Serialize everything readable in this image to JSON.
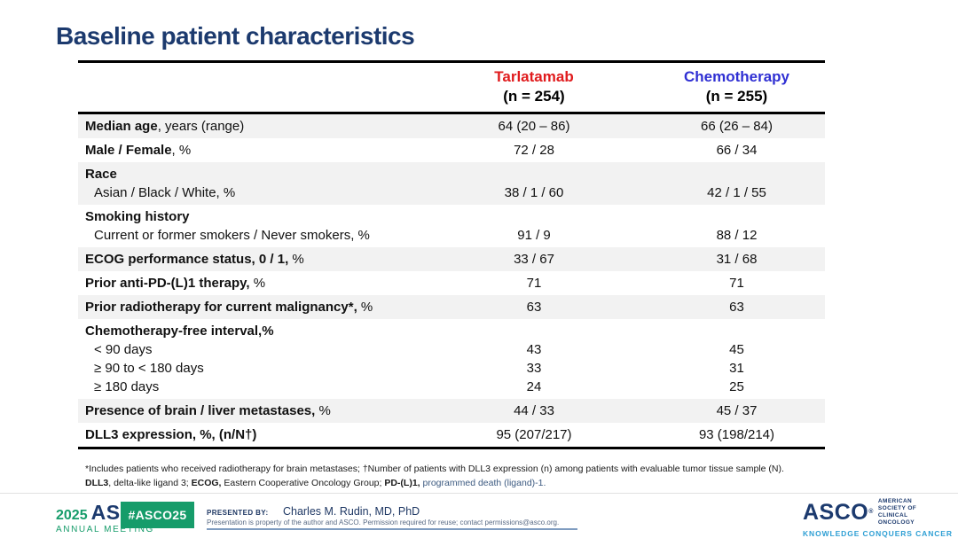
{
  "title": "Baseline patient characteristics",
  "colors": {
    "navy": "#1c3a6e",
    "tarlatamab_red": "#e01b1d",
    "chemotherapy_blue": "#2f2fd3",
    "asco_green": "#169c6a",
    "tagline_blue": "#2e9fd4",
    "row_shade": "#f2f2f2"
  },
  "table": {
    "columns": [
      {
        "name": "Tarlatamab",
        "sub": "(n = 254)"
      },
      {
        "name": "Chemotherapy",
        "sub": "(n = 255)"
      }
    ],
    "rows": [
      {
        "lines": [
          {
            "b": "Median age",
            "r": ", years (range)",
            "v1": "64 (20 – 86)",
            "v2": "66 (26 – 84)"
          }
        ]
      },
      {
        "lines": [
          {
            "b": "Male / Female",
            "r": ", %",
            "v1": "72 / 28",
            "v2": "66 / 34"
          }
        ]
      },
      {
        "lines": [
          {
            "b": "Race",
            "r": "",
            "v1": "",
            "v2": ""
          },
          {
            "b": "",
            "r": "Asian / Black / White, %",
            "v1": "38 / 1 / 60",
            "v2": "42 / 1 / 55"
          }
        ]
      },
      {
        "lines": [
          {
            "b": "Smoking history",
            "r": "",
            "v1": "",
            "v2": ""
          },
          {
            "b": "",
            "r": "Current or former smokers / Never smokers, %",
            "v1": "91 / 9",
            "v2": "88 / 12"
          }
        ]
      },
      {
        "lines": [
          {
            "b": "ECOG performance status, 0 / 1,",
            "r": " %",
            "v1": "33 / 67",
            "v2": "31 / 68"
          }
        ]
      },
      {
        "lines": [
          {
            "b": "Prior anti-PD-(L)1 therapy,",
            "r": " %",
            "v1": "71",
            "v2": "71"
          }
        ]
      },
      {
        "lines": [
          {
            "b": "Prior radiotherapy for current malignancy*,",
            "r": " %",
            "v1": "63",
            "v2": "63"
          }
        ]
      },
      {
        "lines": [
          {
            "b": "Chemotherapy-free interval,%",
            "r": "",
            "v1": "",
            "v2": ""
          },
          {
            "b": "",
            "r": "< 90 days",
            "v1": "43",
            "v2": "45"
          },
          {
            "b": "",
            "r": "≥ 90 to < 180 days",
            "v1": "33",
            "v2": "31"
          },
          {
            "b": "",
            "r": "≥ 180 days",
            "v1": "24",
            "v2": "25"
          }
        ]
      },
      {
        "lines": [
          {
            "b": "Presence of brain / liver metastases,",
            "r": " %",
            "v1": "44 / 33",
            "v2": "45 / 37"
          }
        ]
      },
      {
        "lines": [
          {
            "b": "DLL3 expression, %, (n/N†)",
            "r": "",
            "v1": "95 (207/217)",
            "v2": "93 (198/214)"
          }
        ]
      }
    ]
  },
  "footnotes": {
    "line1": "*Includes patients who received radiotherapy for brain metastases; †Number of patients with DLL3 expression (n) among patients with evaluable tumor tissue sample (N).",
    "line2": {
      "b1": "DLL3",
      "r1": ", delta-like ligand 3; ",
      "b2": "ECOG,",
      "r2": " Eastern Cooperative Oncology Group; ",
      "b3": "PD-(L)1,",
      "r3": " programmed death (ligand)-1."
    }
  },
  "footer": {
    "meeting_year": "2025",
    "meeting_org": "ASCO",
    "meeting_reg": "®",
    "meeting_name": "ANNUAL MEETING",
    "hashtag": "#ASCO25",
    "presented_by_label": "PRESENTED BY:",
    "presenter": "Charles M. Rudin, MD, PhD",
    "disclaimer": "Presentation is property of the author and ASCO. Permission required for reuse; contact permissions@asco.org.",
    "org_logo": "ASCO",
    "org_reg": "®",
    "org_name_line1": "AMERICAN SOCIETY OF",
    "org_name_line2": "CLINICAL ONCOLOGY",
    "org_tagline": "KNOWLEDGE CONQUERS CANCER"
  }
}
